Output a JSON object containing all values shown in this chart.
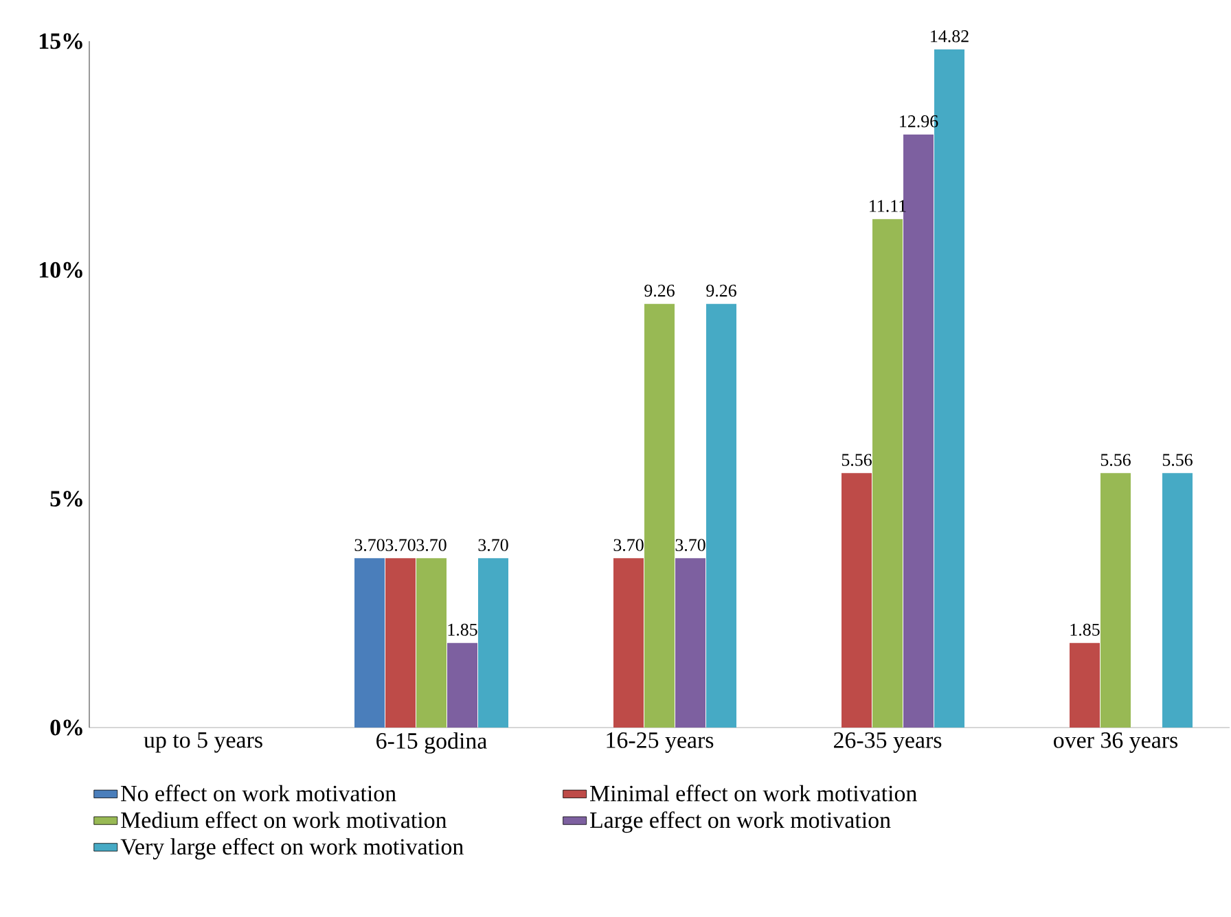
{
  "chart_data": {
    "type": "bar",
    "categories": [
      "up to 5 years",
      "6-15 godina",
      "16-25 years",
      "26-35 years",
      "over 36 years"
    ],
    "ylim": [
      0,
      15
    ],
    "yticks": [
      {
        "value": 0,
        "label": "0%"
      },
      {
        "value": 5,
        "label": "5%"
      },
      {
        "value": 10,
        "label": "10%"
      },
      {
        "value": 15,
        "label": "15%"
      }
    ],
    "grid": false,
    "legend": "bottom",
    "series": [
      {
        "name": "No effect on work motivation",
        "color": "#4a7ebb",
        "values": [
          null,
          3.7,
          null,
          null,
          null
        ],
        "value_labels": [
          null,
          "3.70",
          null,
          null,
          null
        ]
      },
      {
        "name": "Minimal effect on work motivation",
        "color": "#be4b48",
        "values": [
          null,
          3.7,
          3.7,
          5.56,
          1.85
        ],
        "value_labels": [
          null,
          "3.70",
          "3.70",
          "5.56",
          "1.85"
        ]
      },
      {
        "name": "Medium effect on work motivation",
        "color": "#98b954",
        "values": [
          null,
          3.7,
          9.26,
          11.11,
          5.56
        ],
        "value_labels": [
          null,
          "3.70",
          "9.26",
          "11.11",
          "5.56"
        ]
      },
      {
        "name": "Large effect on work motivation",
        "color": "#7d60a0",
        "values": [
          null,
          1.85,
          3.7,
          12.96,
          null
        ],
        "value_labels": [
          null,
          "1.85",
          "3.70",
          "12.96",
          null
        ]
      },
      {
        "name": "Very large effect on work motivation",
        "color": "#46aac5",
        "values": [
          null,
          3.7,
          9.26,
          14.82,
          5.56
        ],
        "value_labels": [
          null,
          "3.70",
          "9.26",
          "14.82",
          "5.56"
        ]
      }
    ]
  }
}
